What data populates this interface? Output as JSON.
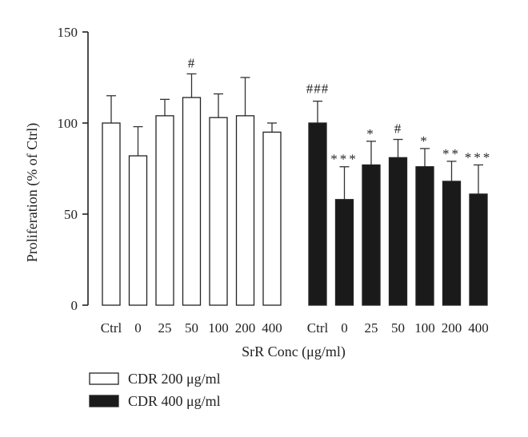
{
  "chart_data": {
    "type": "bar",
    "xlabel": "SrR Conc (μg/ml)",
    "ylabel": "Proliferation (% of Ctrl)",
    "ylim": [
      0,
      150
    ],
    "yticks": [
      0,
      50,
      100,
      150
    ],
    "grid": false,
    "legend_position": "bottom-left",
    "groups": [
      {
        "name": "CDR 200 μg/ml",
        "color": "#ffffff",
        "categories": [
          "Ctrl",
          "0",
          "25",
          "50",
          "100",
          "200",
          "400"
        ],
        "values": [
          100,
          82,
          104,
          114,
          103,
          104,
          95
        ],
        "errors": [
          15,
          16,
          9,
          13,
          13,
          21,
          5
        ],
        "significance": [
          "",
          "",
          "",
          "#",
          "",
          "",
          ""
        ]
      },
      {
        "name": "CDR 400 μg/ml",
        "color": "#1a1a1a",
        "categories": [
          "Ctrl",
          "0",
          "25",
          "50",
          "100",
          "200",
          "400"
        ],
        "values": [
          100,
          58,
          77,
          81,
          76,
          68,
          61
        ],
        "errors": [
          12,
          18,
          13,
          10,
          10,
          11,
          16
        ],
        "significance": [
          "###",
          "***",
          "*",
          "#",
          "*",
          "**",
          "***"
        ]
      }
    ]
  }
}
